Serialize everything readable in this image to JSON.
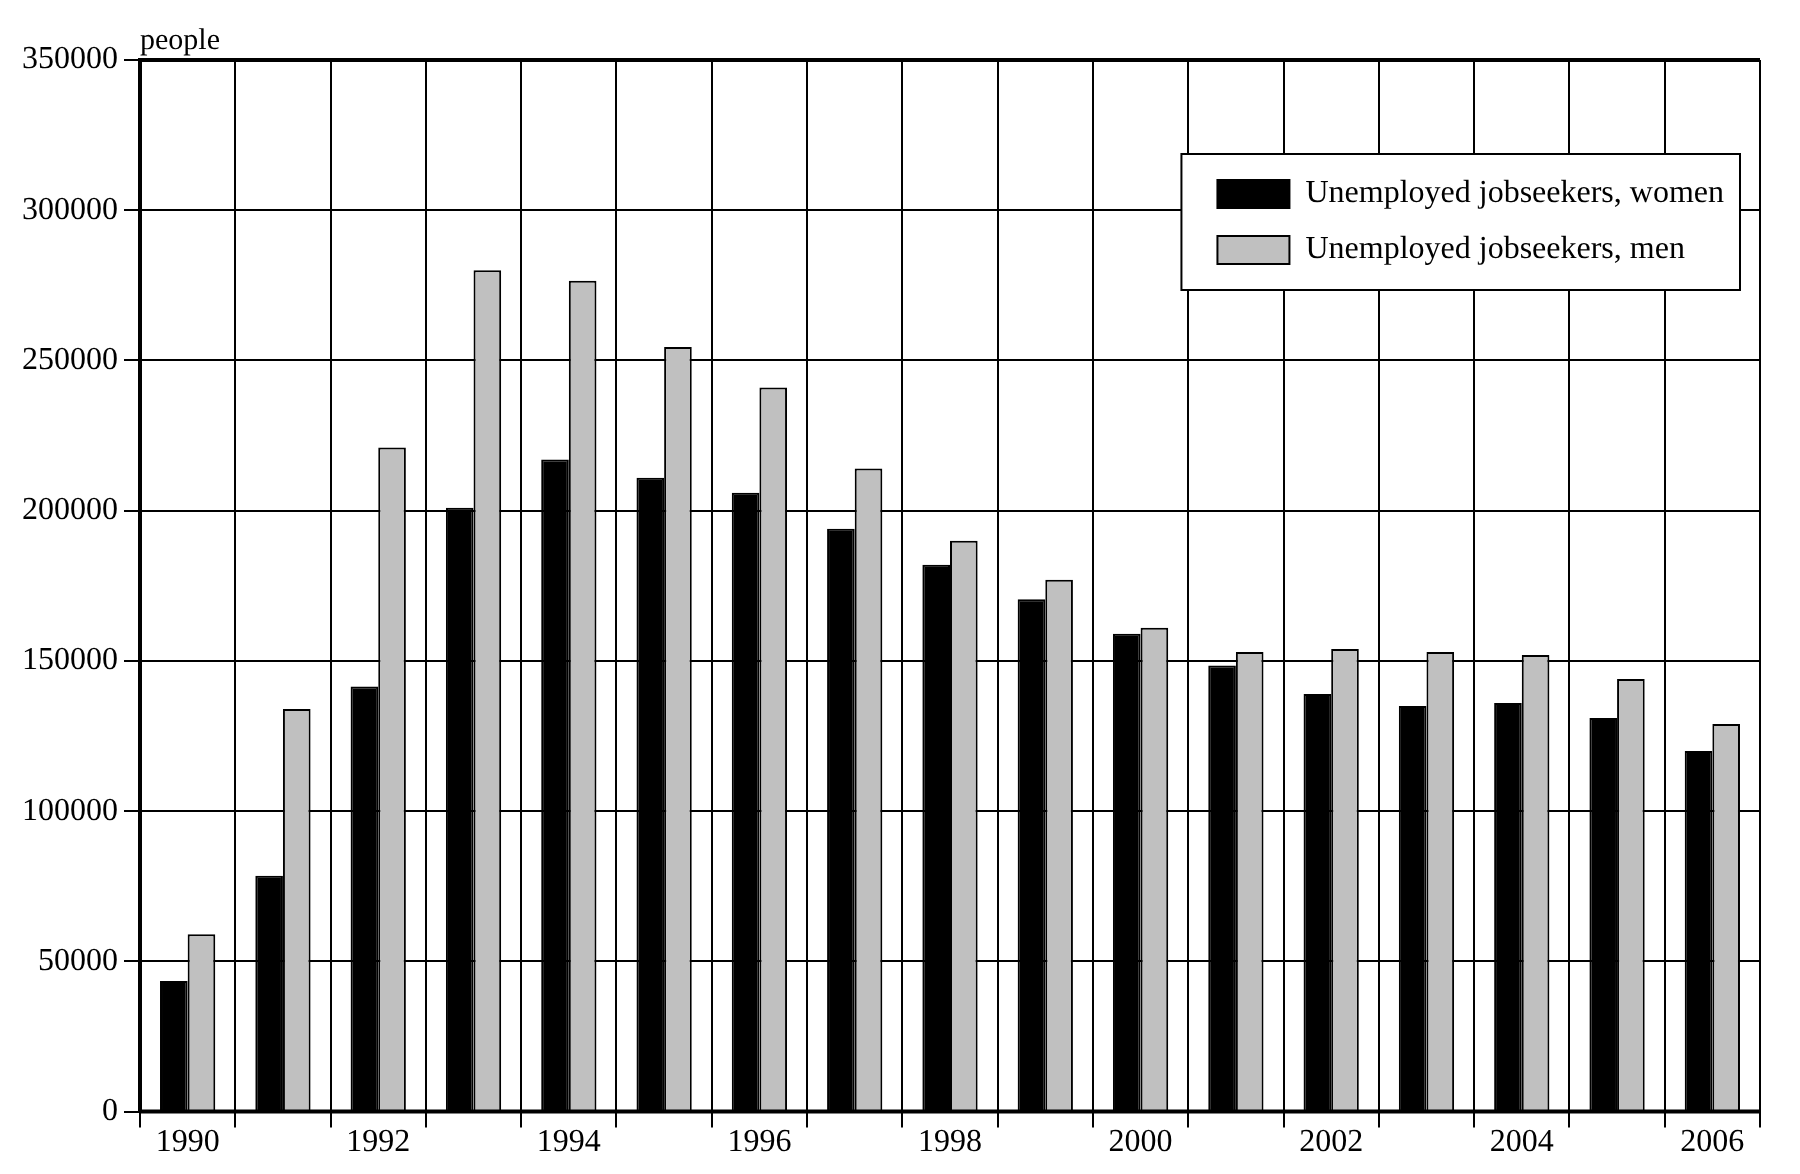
{
  "chart_data": {
    "type": "bar",
    "ylabel": "people",
    "categories": [
      "1990",
      null,
      "1992",
      null,
      "1994",
      null,
      "1996",
      null,
      "1998",
      null,
      "2000",
      null,
      "2002",
      null,
      "2004",
      null,
      "2006"
    ],
    "series": [
      {
        "name": "Unemployed jobseekers, women",
        "color": "#000000",
        "values": [
          43500,
          78500,
          141500,
          201000,
          217000,
          211000,
          206000,
          194000,
          182000,
          170500,
          159000,
          148500,
          139000,
          135000,
          136000,
          131000,
          120000
        ]
      },
      {
        "name": "Unemployed jobseekers, men",
        "color": "#c0c0c0",
        "values": [
          59000,
          134000,
          221000,
          280000,
          276500,
          254500,
          241000,
          214000,
          190000,
          177000,
          161000,
          153000,
          154000,
          153000,
          152000,
          144000,
          129000
        ]
      }
    ],
    "ylim": [
      0,
      350000
    ],
    "yticks": [
      0,
      50000,
      100000,
      150000,
      200000,
      250000,
      300000,
      350000
    ],
    "grid": true,
    "legend": "top right"
  }
}
